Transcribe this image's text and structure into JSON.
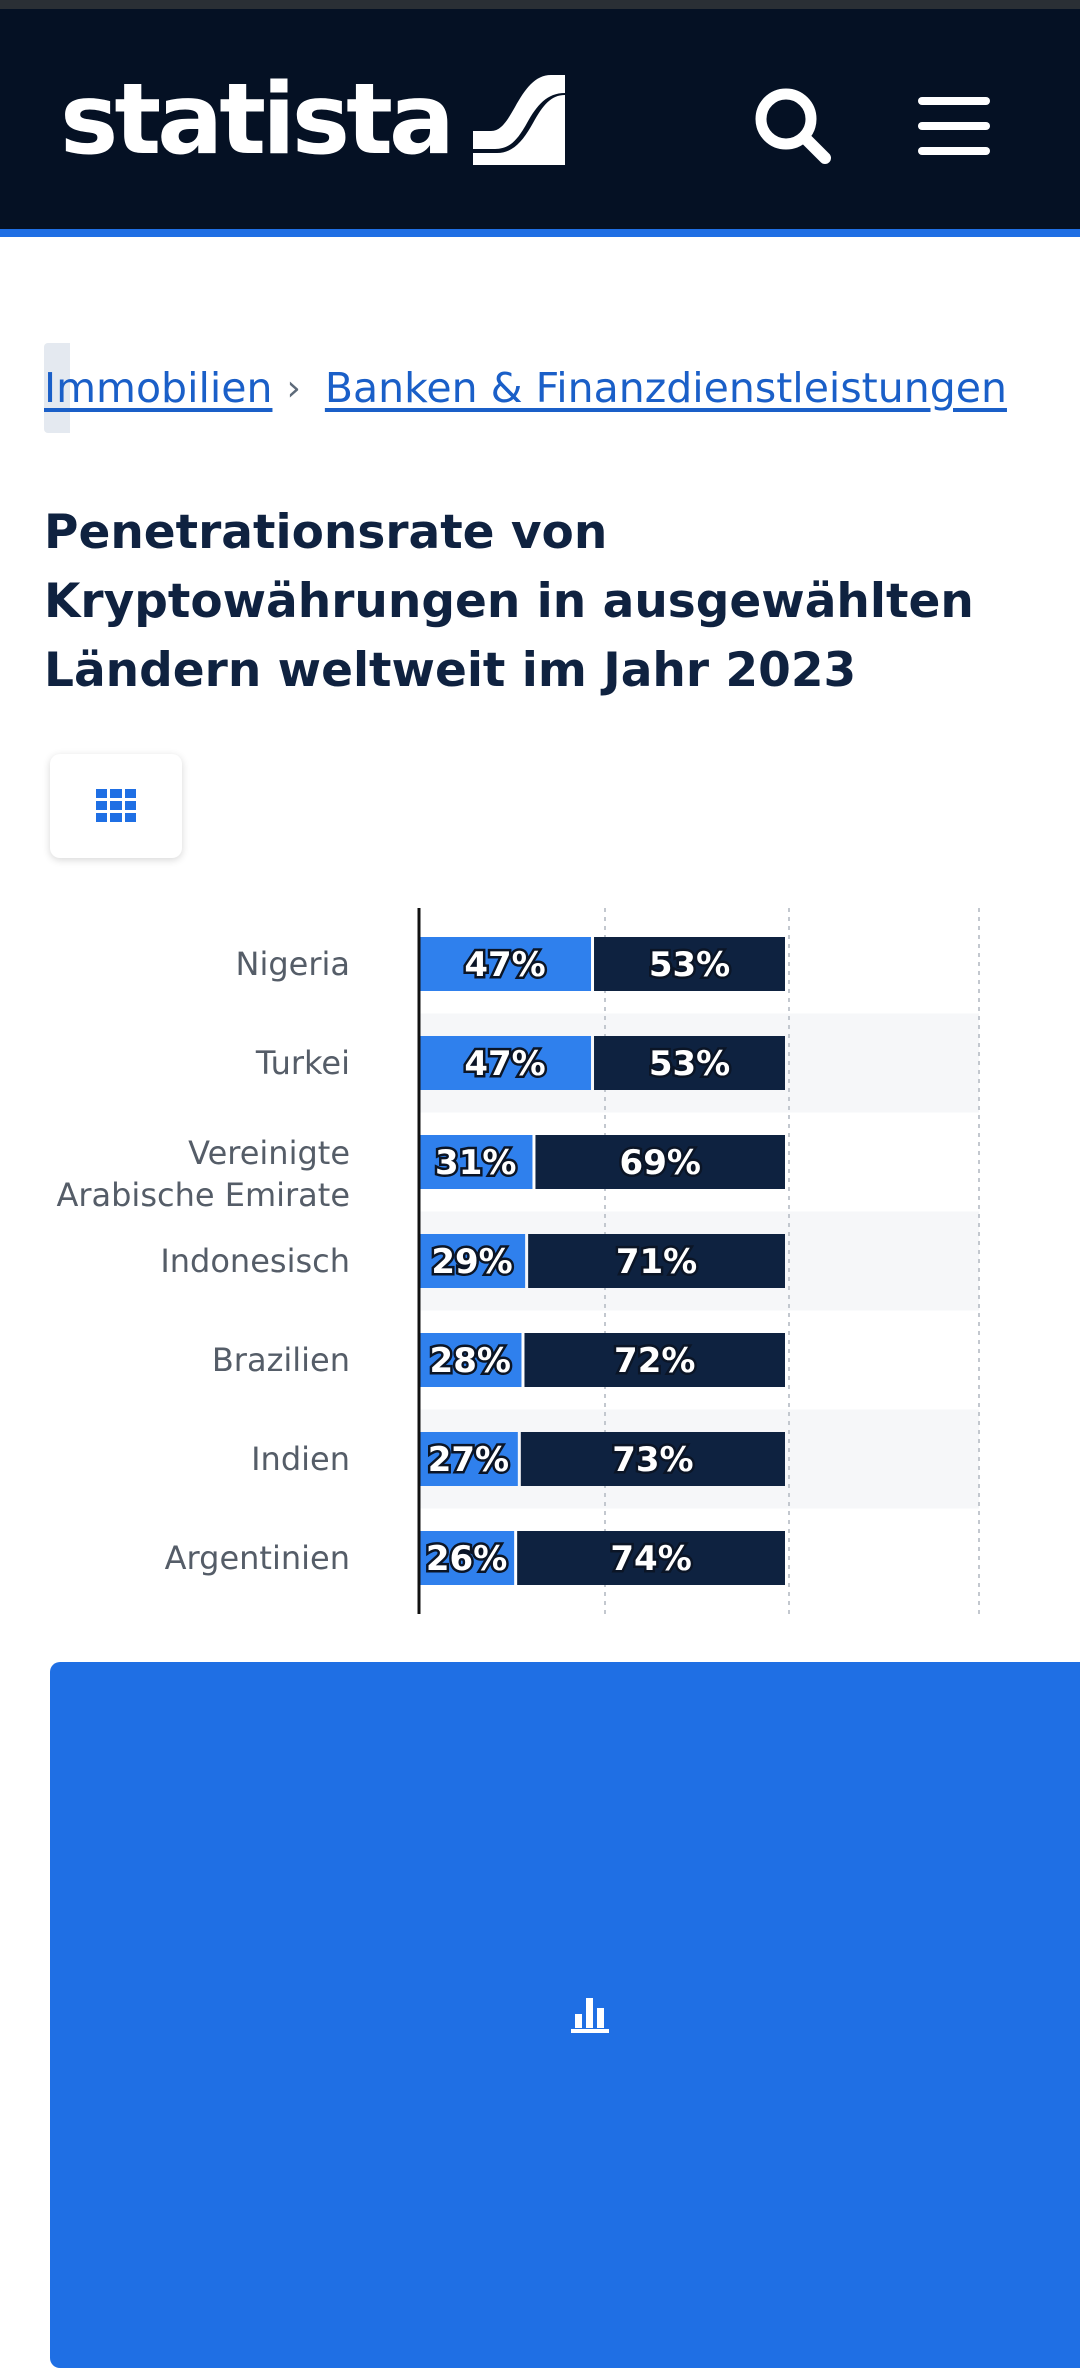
{
  "header": {
    "logo_text": "statista",
    "search_icon": "search-icon",
    "menu_icon": "menu-icon",
    "colors": {
      "background": "#051124",
      "accent": "#1f6fe4"
    }
  },
  "breadcrumb": {
    "items": [
      {
        "label": "Immobilien"
      },
      {
        "label": "Banken & Finanzdienstleistungen"
      }
    ],
    "separator": "›"
  },
  "page": {
    "title": "Penetrationsrate von Kryptowährungen in ausgewählten Ländern weltweit im Jahr 2023"
  },
  "view_toggle": {
    "table_icon": "grid-table-icon",
    "chart_icon": "bar-chart-icon",
    "active": "chart"
  },
  "chart_data": {
    "type": "bar",
    "orientation": "horizontal",
    "stacked": true,
    "categories": [
      "Nigeria",
      "Turkei",
      "Vereinigte Arabische Emirate",
      "Indonesisch",
      "Brazilien",
      "Indien",
      "Argentinien"
    ],
    "series": [
      {
        "values": [
          47,
          47,
          31,
          29,
          28,
          27,
          26
        ],
        "color": "#2f80ed",
        "label_suffix": "%"
      },
      {
        "values": [
          53,
          53,
          69,
          71,
          72,
          73,
          74
        ],
        "color": "#0e2240",
        "label_suffix": "%"
      }
    ],
    "xlim": [
      0,
      100
    ],
    "grid": true
  }
}
